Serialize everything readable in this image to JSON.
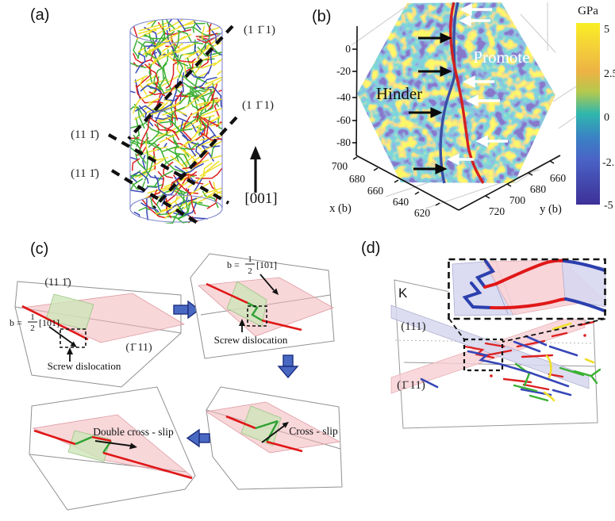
{
  "panel_labels": {
    "a": "(a)",
    "b": "(b)",
    "c": "(c)",
    "d": "(d)"
  },
  "panel_a": {
    "plane_top_right": "(1 1̄ 1)",
    "plane_mid_right": "(1 1̄ 1)",
    "plane_left_upper": "(11 1̄)",
    "plane_left_lower": "(11 1̄)",
    "loading_axis": "[001]",
    "dislocation_colors": {
      "red": "#dd2020",
      "green": "#3cb034",
      "blue": "#3747b8",
      "yellow": "#f0df2a"
    }
  },
  "panel_b": {
    "promote": "Promote",
    "hinder": "Hinder",
    "colorbar": {
      "title": "GPa",
      "ticks": [
        "5",
        "2.5",
        "0",
        "-2.5",
        "-5"
      ]
    },
    "z_ticks": [
      "0",
      "-20",
      "-40",
      "-60",
      "-80"
    ],
    "x_axis": {
      "label": "x (b)",
      "ticks": [
        "700",
        "680",
        "660",
        "640",
        "620"
      ]
    },
    "y_axis": {
      "label": "y (b)",
      "ticks": [
        "720",
        "700",
        "680",
        "660"
      ]
    }
  },
  "panel_c": {
    "burgers": {
      "prefix": "b =",
      "numerator": "1",
      "denominator": "2",
      "direction": "[101]"
    },
    "box1": {
      "plane_cross": "(11 1̄)",
      "plane_glide": "(1̄ 11)",
      "caption": "Screw dislocation"
    },
    "box2": {
      "caption": "Screw dislocation"
    },
    "box3": {
      "caption": "Double cross - slip"
    },
    "box4": {
      "caption": "Cross - slip"
    }
  },
  "panel_d": {
    "region_label": "K",
    "plane_upper": "(111)",
    "plane_lower": "(1̄ 11)"
  },
  "chart_data": {
    "type": "heatmap",
    "title": "",
    "colorbar": {
      "label": "GPa",
      "ticks": [
        5,
        2.5,
        0,
        -2.5,
        -5
      ],
      "range": [
        -5,
        5
      ]
    },
    "axes": {
      "z": {
        "ticks": [
          0,
          -20,
          -40,
          -60,
          -80
        ]
      },
      "x": {
        "label": "x (b)",
        "ticks": [
          700,
          680,
          660,
          640,
          620
        ]
      },
      "y": {
        "label": "y (b)",
        "ticks": [
          720,
          700,
          680,
          660
        ]
      }
    },
    "annotations": [
      "Promote",
      "Hinder"
    ],
    "overlays": {
      "curve_colors": [
        "#d42020",
        "#3a4fa5"
      ],
      "arrow_colors": [
        "black",
        "white"
      ]
    },
    "layout": {
      "shape": "hexagonal cross-section",
      "grid": true,
      "colormap": "parula"
    }
  }
}
